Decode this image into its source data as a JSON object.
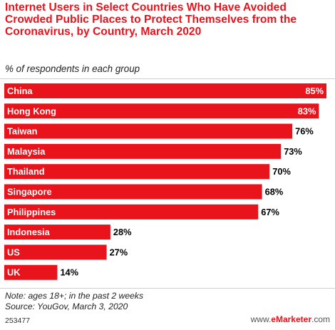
{
  "title": "Internet Users in Select Countries Who Have Avoided Crowded Public Places to Protect Themselves from the Coronavirus, by Country, March 2020",
  "subtitle": "% of respondents in each group",
  "note": "Note: ages 18+; in the past 2 weeks",
  "source": "Source: YouGov, March 3, 2020",
  "chart_id": "253477",
  "brand": {
    "prefix": "www.",
    "mark": "eMarketer",
    "suffix": ".com"
  },
  "colors": {
    "bar": "#e8131b",
    "bar_label": "#ffffff",
    "value_label": "#000000"
  },
  "chart_data": {
    "type": "bar",
    "orientation": "horizontal",
    "categories": [
      "China",
      "Hong Kong",
      "Taiwan",
      "Malaysia",
      "Thailand",
      "Singapore",
      "Philippines",
      "Indonesia",
      "US",
      "UK"
    ],
    "values": [
      85,
      83,
      76,
      73,
      70,
      68,
      67,
      28,
      27,
      14
    ],
    "value_labels": [
      "85%",
      "83%",
      "76%",
      "73%",
      "70%",
      "68%",
      "67%",
      "28%",
      "27%",
      "14%"
    ],
    "xlim": [
      0,
      85
    ],
    "grid": false,
    "legend": "none"
  }
}
